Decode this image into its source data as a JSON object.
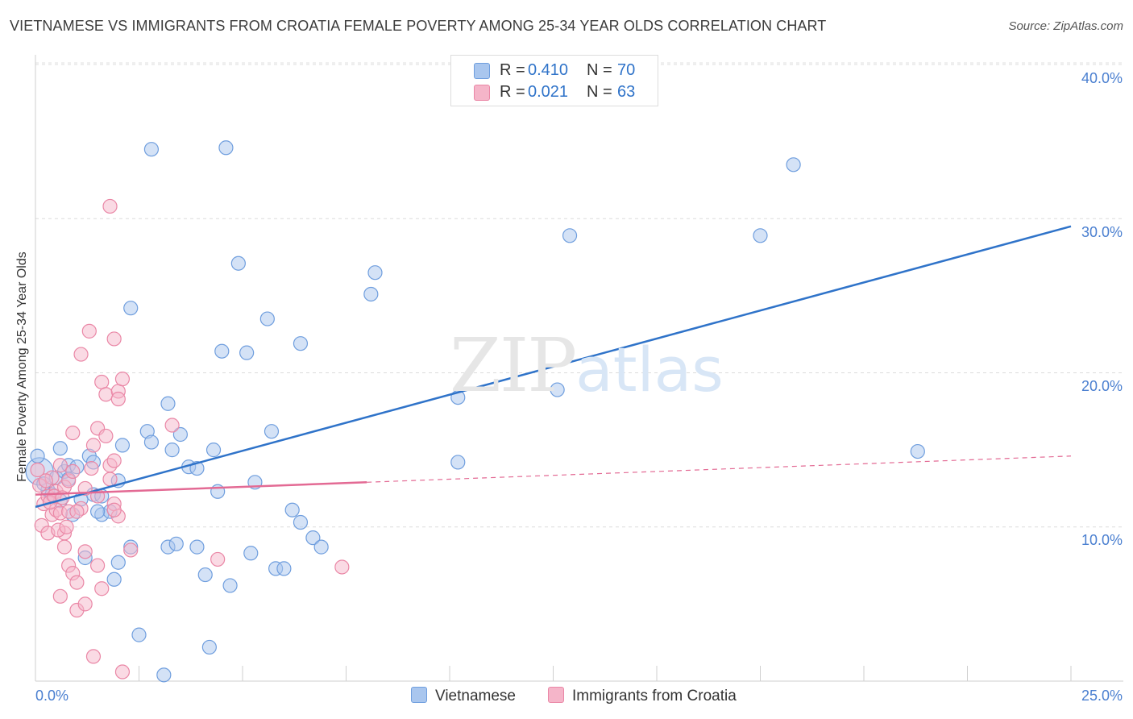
{
  "title": "VIETNAMESE VS IMMIGRANTS FROM CROATIA FEMALE POVERTY AMONG 25-34 YEAR OLDS CORRELATION CHART",
  "source": "Source: ZipAtlas.com",
  "watermark": {
    "zip": "ZIP",
    "atlas": "atlas"
  },
  "legend": {
    "r_label": "R =",
    "n_label": "N =",
    "series": [
      {
        "r": "0.410",
        "n": "70"
      },
      {
        "r": "0.021",
        "n": "63"
      }
    ]
  },
  "colors": {
    "vietnamese_fill": "#a9c6ee",
    "vietnamese_stroke": "#6f9ede",
    "vietnamese_line": "#2f73c9",
    "croatia_fill": "#f5b5c9",
    "croatia_stroke": "#ea87a6",
    "croatia_line": "#e36a94",
    "tick_text": "#4a7fd0"
  },
  "chart_data": {
    "type": "scatter",
    "title": "VIETNAMESE VS IMMIGRANTS FROM CROATIA FEMALE POVERTY AMONG 25-34 YEAR OLDS CORRELATION CHART",
    "xlabel": "",
    "ylabel": "Female Poverty Among 25-34 Year Olds",
    "xlim": [
      0,
      25
    ],
    "ylim": [
      0,
      40
    ],
    "x_tick_labels": [
      "0.0%",
      "25.0%"
    ],
    "y_ticks": [
      10,
      20,
      30,
      40
    ],
    "y_tick_labels": [
      "10.0%",
      "20.0%",
      "30.0%",
      "40.0%"
    ],
    "grid": true,
    "legend_position": "top-center",
    "series": [
      {
        "name": "Vietnamese",
        "r": 0.41,
        "n": 70,
        "trend": {
          "x": [
            0,
            25
          ],
          "y": [
            11.3,
            29.5
          ],
          "dashed_from": null
        },
        "points": [
          [
            0.1,
            13.6
          ],
          [
            0.3,
            12.4
          ],
          [
            0.4,
            12.1
          ],
          [
            0.5,
            13.2
          ],
          [
            0.6,
            15.1
          ],
          [
            0.7,
            13.6
          ],
          [
            0.8,
            14.0
          ],
          [
            0.8,
            13.1
          ],
          [
            0.9,
            10.8
          ],
          [
            1.1,
            11.8
          ],
          [
            1.2,
            8.0
          ],
          [
            1.3,
            14.6
          ],
          [
            1.4,
            14.2
          ],
          [
            1.4,
            12.1
          ],
          [
            1.6,
            10.8
          ],
          [
            1.8,
            11.0
          ],
          [
            1.9,
            6.6
          ],
          [
            2.0,
            7.7
          ],
          [
            2.1,
            15.3
          ],
          [
            2.3,
            8.7
          ],
          [
            2.3,
            24.2
          ],
          [
            2.5,
            3.0
          ],
          [
            2.7,
            16.2
          ],
          [
            2.8,
            15.5
          ],
          [
            2.8,
            34.5
          ],
          [
            3.1,
            0.4
          ],
          [
            3.2,
            8.7
          ],
          [
            3.2,
            18.0
          ],
          [
            3.3,
            15.0
          ],
          [
            3.4,
            8.9
          ],
          [
            3.5,
            16.0
          ],
          [
            3.7,
            13.9
          ],
          [
            3.9,
            8.7
          ],
          [
            4.1,
            6.9
          ],
          [
            4.2,
            2.2
          ],
          [
            4.3,
            15.0
          ],
          [
            4.4,
            12.3
          ],
          [
            4.5,
            21.4
          ],
          [
            4.6,
            34.6
          ],
          [
            4.7,
            6.2
          ],
          [
            4.9,
            27.1
          ],
          [
            5.1,
            21.3
          ],
          [
            5.2,
            8.3
          ],
          [
            5.3,
            12.9
          ],
          [
            5.6,
            23.5
          ],
          [
            5.7,
            16.2
          ],
          [
            5.8,
            7.3
          ],
          [
            6.0,
            7.3
          ],
          [
            6.2,
            11.1
          ],
          [
            6.4,
            10.3
          ],
          [
            6.4,
            21.9
          ],
          [
            6.7,
            9.3
          ],
          [
            6.9,
            8.7
          ],
          [
            8.1,
            25.1
          ],
          [
            8.2,
            26.5
          ],
          [
            10.2,
            18.4
          ],
          [
            10.2,
            14.2
          ],
          [
            12.6,
            18.9
          ],
          [
            12.9,
            28.9
          ],
          [
            17.5,
            28.9
          ],
          [
            18.3,
            33.5
          ],
          [
            21.3,
            14.9
          ],
          [
            0.05,
            14.6
          ],
          [
            0.2,
            12.8
          ],
          [
            1.0,
            13.9
          ],
          [
            1.6,
            12.0
          ],
          [
            2.0,
            13.0
          ],
          [
            3.9,
            13.8
          ],
          [
            0.6,
            11.7
          ],
          [
            1.5,
            11.0
          ]
        ]
      },
      {
        "name": "Immigrants from Croatia",
        "r": 0.021,
        "n": 63,
        "trend": {
          "x": [
            0,
            25
          ],
          "y": [
            12.1,
            14.6
          ],
          "dashed_from": 8.0
        },
        "points": [
          [
            0.05,
            13.7
          ],
          [
            0.1,
            12.7
          ],
          [
            0.15,
            10.1
          ],
          [
            0.2,
            11.5
          ],
          [
            0.3,
            12.0
          ],
          [
            0.3,
            9.6
          ],
          [
            0.4,
            13.2
          ],
          [
            0.4,
            10.8
          ],
          [
            0.5,
            12.3
          ],
          [
            0.5,
            11.1
          ],
          [
            0.6,
            10.9
          ],
          [
            0.6,
            14.0
          ],
          [
            0.6,
            5.5
          ],
          [
            0.7,
            12.6
          ],
          [
            0.7,
            8.7
          ],
          [
            0.7,
            9.6
          ],
          [
            0.8,
            13.0
          ],
          [
            0.8,
            11.0
          ],
          [
            0.8,
            7.5
          ],
          [
            0.9,
            16.1
          ],
          [
            0.9,
            7.0
          ],
          [
            1.0,
            6.4
          ],
          [
            1.0,
            4.6
          ],
          [
            0.9,
            13.6
          ],
          [
            1.1,
            11.2
          ],
          [
            1.1,
            21.2
          ],
          [
            1.2,
            8.4
          ],
          [
            1.2,
            5.0
          ],
          [
            1.3,
            22.7
          ],
          [
            1.4,
            1.6
          ],
          [
            1.4,
            15.3
          ],
          [
            1.5,
            16.4
          ],
          [
            1.5,
            7.5
          ],
          [
            1.6,
            19.4
          ],
          [
            1.6,
            6.0
          ],
          [
            1.7,
            15.9
          ],
          [
            1.7,
            18.6
          ],
          [
            1.8,
            30.8
          ],
          [
            1.8,
            13.1
          ],
          [
            1.9,
            11.5
          ],
          [
            1.9,
            22.2
          ],
          [
            2.0,
            10.7
          ],
          [
            1.8,
            14.0
          ],
          [
            1.9,
            11.1
          ],
          [
            2.0,
            18.8
          ],
          [
            2.0,
            18.3
          ],
          [
            2.1,
            0.6
          ],
          [
            2.1,
            19.6
          ],
          [
            2.3,
            8.5
          ],
          [
            3.3,
            16.6
          ],
          [
            4.4,
            7.9
          ],
          [
            7.4,
            7.4
          ],
          [
            0.35,
            11.6
          ],
          [
            0.55,
            9.8
          ],
          [
            0.25,
            13.0
          ],
          [
            0.45,
            12.0
          ],
          [
            1.0,
            11.0
          ],
          [
            1.2,
            12.5
          ],
          [
            0.75,
            10.0
          ],
          [
            1.35,
            13.8
          ],
          [
            0.65,
            11.9
          ],
          [
            1.9,
            14.3
          ],
          [
            1.5,
            12.0
          ]
        ]
      }
    ]
  }
}
